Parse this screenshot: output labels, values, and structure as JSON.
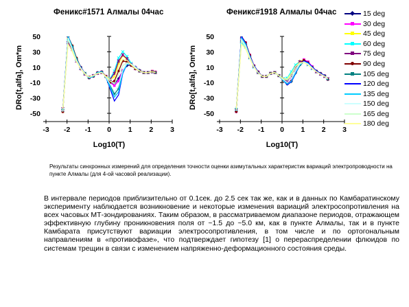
{
  "chart_data": [
    {
      "type": "line",
      "title": "Феникс#1571 Алмалы 04час",
      "xlabel": "Log10(T)",
      "ylabel": "DRo[t,alfa], Om*m",
      "xlim": [
        -3,
        3
      ],
      "ylim": [
        -50,
        50
      ],
      "xticks": [
        "-3",
        "-2",
        "-1",
        "0",
        "1",
        "2",
        "3"
      ],
      "yticks": [
        "50",
        "30",
        "10",
        "-10",
        "-30",
        "-50"
      ],
      "grid": false,
      "x": [
        -2.2,
        -1.95,
        -1.75,
        -1.55,
        -1.35,
        -1.15,
        -0.95,
        -0.75,
        -0.55,
        -0.35,
        -0.15,
        0.05,
        0.25,
        0.45,
        0.65,
        0.85,
        1.05,
        1.25,
        1.45,
        1.65,
        1.85,
        2.05,
        2.2
      ],
      "series": [
        {
          "name": "15 deg",
          "values": [
            -48,
            50,
            35,
            20,
            10,
            2,
            -4,
            -2,
            3,
            4,
            -2,
            -10,
            -12,
            -5,
            5,
            12,
            13,
            10,
            6,
            3,
            3,
            4,
            3
          ]
        },
        {
          "name": "30 deg",
          "values": [
            -48,
            50,
            36,
            20,
            10,
            2,
            -4,
            -2,
            3,
            4,
            -2,
            -10,
            -14,
            -8,
            6,
            15,
            14,
            10,
            5,
            3,
            3,
            5,
            4
          ]
        },
        {
          "name": "45 deg",
          "values": [
            -48,
            48,
            38,
            22,
            10,
            2,
            -3,
            -1,
            2,
            3,
            -2,
            -7,
            -2,
            15,
            25,
            20,
            13,
            8,
            5,
            3,
            3,
            5,
            4
          ]
        },
        {
          "name": "60 deg",
          "values": [
            -46,
            44,
            35,
            20,
            9,
            2,
            -3,
            -1,
            2,
            3,
            -2,
            -5,
            5,
            22,
            30,
            24,
            15,
            9,
            5,
            3,
            3,
            4,
            3
          ]
        },
        {
          "name": "75 deg",
          "values": [
            -44,
            42,
            33,
            18,
            8,
            1,
            -3,
            -1,
            2,
            3,
            -2,
            -6,
            2,
            18,
            26,
            21,
            13,
            8,
            5,
            3,
            3,
            4,
            3
          ]
        },
        {
          "name": "90 deg",
          "values": [
            -48,
            50,
            38,
            22,
            10,
            2,
            -4,
            -2,
            3,
            4,
            -2,
            -10,
            -8,
            5,
            18,
            17,
            12,
            8,
            5,
            3,
            3,
            4,
            3
          ]
        },
        {
          "name": "105 deg",
          "values": [
            -45,
            50,
            37,
            21,
            10,
            2,
            -4,
            -2,
            3,
            4,
            -3,
            -14,
            -25,
            -18,
            5,
            15,
            14,
            10,
            5,
            3,
            3,
            4,
            3
          ]
        },
        {
          "name": "120 deg",
          "values": [
            -44,
            50,
            36,
            20,
            10,
            2,
            -4,
            -2,
            3,
            4,
            -3,
            -18,
            -34,
            -26,
            2,
            14,
            14,
            10,
            5,
            3,
            3,
            4,
            3
          ]
        },
        {
          "name": "135 deg",
          "values": [
            -46,
            50,
            36,
            20,
            9,
            2,
            -4,
            -2,
            3,
            4,
            -3,
            -16,
            -29,
            -22,
            3,
            14,
            14,
            10,
            5,
            3,
            3,
            4,
            3
          ]
        },
        {
          "name": "150 deg",
          "values": [
            -48,
            48,
            34,
            19,
            9,
            2,
            -3,
            -1,
            2,
            3,
            -3,
            -12,
            -22,
            -14,
            6,
            15,
            14,
            10,
            5,
            3,
            3,
            4,
            3
          ]
        },
        {
          "name": "165 deg",
          "values": [
            -47,
            46,
            33,
            18,
            8,
            1,
            -3,
            -1,
            2,
            3,
            -3,
            -8,
            -12,
            0,
            12,
            16,
            13,
            9,
            5,
            3,
            3,
            4,
            3
          ]
        },
        {
          "name": "180 deg",
          "values": [
            -44,
            40,
            30,
            17,
            8,
            1,
            -3,
            -1,
            2,
            3,
            -2,
            -6,
            -4,
            10,
            20,
            19,
            13,
            8,
            5,
            3,
            3,
            4,
            3
          ]
        }
      ]
    },
    {
      "type": "line",
      "title": "Феникс#1918 Алмалы 04час",
      "xlabel": "Log10(T)",
      "ylabel": "DRo[t,alfa], Om*m",
      "xlim": [
        -3,
        3
      ],
      "ylim": [
        -50,
        50
      ],
      "xticks": [
        "-3",
        "-2",
        "-1",
        "0",
        "1",
        "2",
        "3"
      ],
      "yticks": [
        "50",
        "30",
        "10",
        "-10",
        "-30",
        "-50"
      ],
      "grid": false,
      "x": [
        -2.2,
        -1.95,
        -1.75,
        -1.55,
        -1.35,
        -1.15,
        -0.95,
        -0.75,
        -0.55,
        -0.35,
        -0.15,
        0.05,
        0.25,
        0.45,
        0.65,
        0.85,
        1.05,
        1.25,
        1.45,
        1.65,
        1.85,
        2.05,
        2.2
      ],
      "series": [
        {
          "name": "15 deg",
          "values": [
            -48,
            48,
            40,
            25,
            12,
            4,
            -2,
            -2,
            2,
            3,
            -1,
            -6,
            -10,
            -6,
            4,
            14,
            18,
            15,
            10,
            5,
            2,
            -1,
            -6
          ]
        },
        {
          "name": "30 deg",
          "values": [
            -48,
            50,
            42,
            26,
            12,
            4,
            -2,
            -2,
            2,
            3,
            -1,
            -6,
            -11,
            -6,
            5,
            16,
            20,
            17,
            11,
            5,
            2,
            -1,
            -6
          ]
        },
        {
          "name": "45 deg",
          "values": [
            -47,
            45,
            38,
            24,
            11,
            3,
            -2,
            -2,
            2,
            3,
            -1,
            -5,
            -6,
            2,
            12,
            18,
            19,
            15,
            9,
            4,
            1,
            -2,
            -5
          ]
        },
        {
          "name": "60 deg",
          "values": [
            -45,
            42,
            36,
            22,
            10,
            3,
            -2,
            -2,
            2,
            3,
            -1,
            -5,
            -4,
            4,
            13,
            17,
            17,
            13,
            8,
            4,
            1,
            -2,
            -5
          ]
        },
        {
          "name": "75 deg",
          "values": [
            -46,
            44,
            37,
            23,
            11,
            3,
            -2,
            -2,
            2,
            3,
            -1,
            -6,
            -8,
            -1,
            9,
            17,
            18,
            14,
            9,
            4,
            1,
            -2,
            -5
          ]
        },
        {
          "name": "90 deg",
          "values": [
            -48,
            50,
            42,
            26,
            12,
            4,
            -2,
            -2,
            2,
            3,
            -1,
            -7,
            -12,
            -8,
            3,
            14,
            19,
            16,
            10,
            5,
            2,
            -1,
            -6
          ]
        },
        {
          "name": "105 deg",
          "values": [
            -44,
            50,
            40,
            24,
            11,
            3,
            -2,
            -2,
            2,
            3,
            -1,
            -7,
            -12,
            -9,
            2,
            12,
            17,
            15,
            10,
            5,
            2,
            -1,
            -6
          ]
        },
        {
          "name": "120 deg",
          "values": [
            -45,
            50,
            41,
            25,
            12,
            4,
            -2,
            -2,
            2,
            3,
            -1,
            -7,
            -13,
            -9,
            2,
            13,
            18,
            16,
            10,
            5,
            2,
            -1,
            -6
          ]
        },
        {
          "name": "135 deg",
          "values": [
            -46,
            48,
            40,
            24,
            11,
            3,
            -2,
            -2,
            2,
            3,
            -1,
            -7,
            -12,
            -8,
            3,
            13,
            17,
            15,
            9,
            4,
            1,
            -2,
            -6
          ]
        },
        {
          "name": "150 deg",
          "values": [
            -47,
            46,
            38,
            23,
            11,
            3,
            -2,
            -2,
            2,
            3,
            -1,
            -6,
            -10,
            -5,
            5,
            14,
            17,
            14,
            9,
            4,
            1,
            -2,
            -5
          ]
        },
        {
          "name": "165 deg",
          "values": [
            -46,
            44,
            36,
            22,
            10,
            3,
            -2,
            -2,
            2,
            3,
            -1,
            -5,
            -7,
            -1,
            8,
            15,
            16,
            13,
            8,
            4,
            1,
            -2,
            -5
          ]
        },
        {
          "name": "180 deg",
          "values": [
            -44,
            40,
            34,
            21,
            10,
            3,
            -2,
            -2,
            2,
            3,
            -1,
            -5,
            -5,
            2,
            11,
            16,
            16,
            13,
            8,
            4,
            1,
            -2,
            -5
          ]
        }
      ]
    }
  ],
  "legend": {
    "placement": "right",
    "items": [
      {
        "label": "15 deg",
        "color": "#000080",
        "marker": "diamond"
      },
      {
        "label": "30 deg",
        "color": "#ff00ff",
        "marker": "square"
      },
      {
        "label": "45 deg",
        "color": "#ffff00",
        "marker": "triangle"
      },
      {
        "label": "60 deg",
        "color": "#00ffff",
        "marker": "cross"
      },
      {
        "label": "75 deg",
        "color": "#800080",
        "marker": "star"
      },
      {
        "label": "90 deg",
        "color": "#800000",
        "marker": "circle"
      },
      {
        "label": "105 deg",
        "color": "#008080",
        "marker": "plus"
      },
      {
        "label": "120 deg",
        "color": "#0000ff",
        "marker": "none"
      },
      {
        "label": "135 deg",
        "color": "#00ccff",
        "marker": "none"
      },
      {
        "label": "150 deg",
        "color": "#ccffff",
        "marker": "none"
      },
      {
        "label": "165 deg",
        "color": "#ccffcc",
        "marker": "none"
      },
      {
        "label": "180 deg",
        "color": "#ffff99",
        "marker": "none"
      }
    ]
  },
  "caption": "Результаты синхронных измерений для определения точности оценки азимутальных характеристик вариаций электропроводности на пункте Алмалы (для 4-ой часовой реализации).",
  "paragraph": "В интервале периодов приблизительно от 0.1сек. до 2.5 сек так же, как и в данных по Камбаратинскому эксперименту наблюдается возникновение и некоторые изменения вариаций электросопротивления на всех часовых МТ-зондированиях. Таким образом, в рассматриваемом диапазоне периодов, отражающем эффективную глубину проникновения поля от ~1.5 до ~5.0 км, как в пункте Алмалы, так и в пункте Камбарата присутствуют вариации электросопротивления, в том числе и по ортогональным направлениям в «противофазе», что подтверждает гипотезу [1] о перераспределении флюидов по системам трещин в связи с изменением напряженно-деформационного состояния среды."
}
